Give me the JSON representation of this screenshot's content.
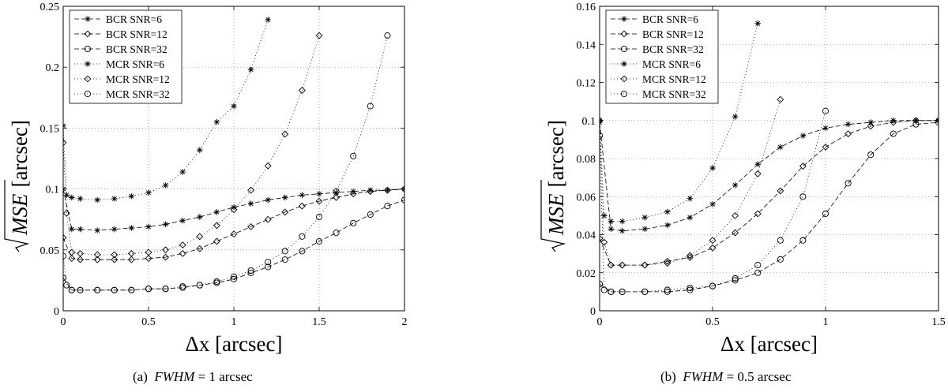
{
  "chart_data": [
    {
      "type": "line",
      "panel_label": "(a)",
      "caption_var": "FWHM",
      "caption_rest": " = 1 arcsec",
      "xlabel": "Δx [arcsec]",
      "ylabel": "√MSE [arcsec]",
      "ylabel_root": "MSE",
      "ylabel_unit": "[arcsec]",
      "xlim": [
        0,
        2
      ],
      "ylim": [
        0,
        0.25
      ],
      "xticks": [
        0,
        0.5,
        1,
        1.5,
        2
      ],
      "xtick_labels": [
        "0",
        "0.5",
        "1",
        "1.5",
        "2"
      ],
      "yticks": [
        0,
        0.05,
        0.1,
        0.15,
        0.2,
        0.25
      ],
      "ytick_labels": [
        "0",
        "0.05",
        "0.1",
        "0.15",
        "0.2",
        "0.25"
      ],
      "grid": true,
      "legend_position": "top-left",
      "series": [
        {
          "name": "BCR SNR=6",
          "marker": "star",
          "linestyle": "dash",
          "x": [
            0,
            0.05,
            0.1,
            0.2,
            0.3,
            0.4,
            0.5,
            0.6,
            0.7,
            0.8,
            0.9,
            1.0,
            1.1,
            1.2,
            1.3,
            1.4,
            1.5,
            1.6,
            1.7,
            1.8,
            1.9,
            2.0
          ],
          "y": [
            0.1,
            0.067,
            0.067,
            0.066,
            0.067,
            0.068,
            0.069,
            0.071,
            0.074,
            0.077,
            0.081,
            0.085,
            0.088,
            0.091,
            0.093,
            0.095,
            0.096,
            0.097,
            0.098,
            0.099,
            0.099,
            0.1
          ]
        },
        {
          "name": "BCR SNR=12",
          "marker": "diamond",
          "linestyle": "dash",
          "x": [
            0,
            0.05,
            0.1,
            0.2,
            0.3,
            0.4,
            0.5,
            0.6,
            0.7,
            0.8,
            0.9,
            1.0,
            1.1,
            1.2,
            1.3,
            1.4,
            1.5,
            1.6,
            1.7,
            1.8,
            1.9,
            2.0
          ],
          "y": [
            0.06,
            0.043,
            0.042,
            0.042,
            0.042,
            0.042,
            0.043,
            0.044,
            0.047,
            0.051,
            0.057,
            0.063,
            0.069,
            0.075,
            0.081,
            0.086,
            0.09,
            0.093,
            0.096,
            0.098,
            0.099,
            0.1
          ]
        },
        {
          "name": "BCR SNR=32",
          "marker": "circle",
          "linestyle": "dash",
          "x": [
            0,
            0.05,
            0.1,
            0.2,
            0.3,
            0.4,
            0.5,
            0.6,
            0.7,
            0.8,
            0.9,
            1.0,
            1.1,
            1.2,
            1.3,
            1.4,
            1.5,
            1.6,
            1.7,
            1.8,
            1.9,
            2.0
          ],
          "y": [
            0.027,
            0.017,
            0.017,
            0.017,
            0.017,
            0.017,
            0.018,
            0.018,
            0.019,
            0.021,
            0.023,
            0.026,
            0.031,
            0.036,
            0.042,
            0.049,
            0.057,
            0.064,
            0.072,
            0.079,
            0.086,
            0.091
          ]
        },
        {
          "name": "MCR SNR=6",
          "marker": "star",
          "linestyle": "dot",
          "x": [
            0,
            0.02,
            0.05,
            0.1,
            0.2,
            0.3,
            0.4,
            0.5,
            0.6,
            0.7,
            0.8,
            0.9,
            1.0,
            1.1,
            1.2
          ],
          "y": [
            0.152,
            0.095,
            0.093,
            0.092,
            0.091,
            0.092,
            0.094,
            0.097,
            0.103,
            0.114,
            0.132,
            0.155,
            0.168,
            0.198,
            0.239
          ]
        },
        {
          "name": "MCR SNR=12",
          "marker": "diamond",
          "linestyle": "dot",
          "x": [
            0,
            0.02,
            0.05,
            0.1,
            0.2,
            0.3,
            0.4,
            0.5,
            0.6,
            0.7,
            0.8,
            0.9,
            1.0,
            1.1,
            1.2,
            1.3,
            1.4,
            1.5
          ],
          "y": [
            0.138,
            0.08,
            0.048,
            0.047,
            0.046,
            0.046,
            0.047,
            0.048,
            0.05,
            0.054,
            0.061,
            0.07,
            0.083,
            0.099,
            0.119,
            0.145,
            0.181,
            0.226
          ]
        },
        {
          "name": "MCR SNR=32",
          "marker": "circle",
          "linestyle": "dot",
          "x": [
            0,
            0.02,
            0.05,
            0.1,
            0.2,
            0.3,
            0.4,
            0.5,
            0.6,
            0.7,
            0.8,
            0.9,
            1.0,
            1.1,
            1.2,
            1.3,
            1.4,
            1.5,
            1.6,
            1.7,
            1.8,
            1.9
          ],
          "y": [
            0.045,
            0.021,
            0.017,
            0.017,
            0.017,
            0.017,
            0.017,
            0.018,
            0.018,
            0.02,
            0.021,
            0.024,
            0.028,
            0.033,
            0.04,
            0.049,
            0.061,
            0.077,
            0.098,
            0.127,
            0.168,
            0.226
          ]
        }
      ]
    },
    {
      "type": "line",
      "panel_label": "(b)",
      "caption_var": "FWHM",
      "caption_rest": " = 0.5 arcsec",
      "xlabel": "Δx [arcsec]",
      "ylabel": "√MSE [arcsec]",
      "ylabel_root": "MSE",
      "ylabel_unit": "[arcsec]",
      "xlim": [
        0,
        1.5
      ],
      "ylim": [
        0,
        0.16
      ],
      "xticks": [
        0,
        0.5,
        1,
        1.5
      ],
      "xtick_labels": [
        "0",
        "0.5",
        "1",
        "1.5"
      ],
      "yticks": [
        0,
        0.02,
        0.04,
        0.06,
        0.08,
        0.1,
        0.12,
        0.14,
        0.16
      ],
      "ytick_labels": [
        "0",
        "0.02",
        "0.04",
        "0.06",
        "0.08",
        "0.1",
        "0.12",
        "0.14",
        "0.16"
      ],
      "grid": true,
      "legend_position": "top-left",
      "series": [
        {
          "name": "BCR SNR=6",
          "marker": "star",
          "linestyle": "dash",
          "x": [
            0,
            0.05,
            0.1,
            0.2,
            0.3,
            0.4,
            0.5,
            0.6,
            0.7,
            0.8,
            0.9,
            1.0,
            1.1,
            1.2,
            1.3,
            1.4,
            1.5
          ],
          "y": [
            0.099,
            0.043,
            0.042,
            0.043,
            0.045,
            0.049,
            0.056,
            0.066,
            0.077,
            0.086,
            0.092,
            0.096,
            0.098,
            0.099,
            0.1,
            0.1,
            0.1
          ]
        },
        {
          "name": "BCR SNR=12",
          "marker": "diamond",
          "linestyle": "dash",
          "x": [
            0,
            0.05,
            0.1,
            0.2,
            0.3,
            0.4,
            0.5,
            0.6,
            0.7,
            0.8,
            0.9,
            1.0,
            1.1,
            1.2,
            1.3,
            1.4,
            1.5
          ],
          "y": [
            0.038,
            0.024,
            0.024,
            0.024,
            0.026,
            0.028,
            0.033,
            0.041,
            0.051,
            0.063,
            0.076,
            0.086,
            0.093,
            0.097,
            0.099,
            0.1,
            0.1
          ]
        },
        {
          "name": "BCR SNR=32",
          "marker": "circle",
          "linestyle": "dash",
          "x": [
            0,
            0.05,
            0.1,
            0.2,
            0.3,
            0.4,
            0.5,
            0.6,
            0.7,
            0.8,
            0.9,
            1.0,
            1.1,
            1.2,
            1.3,
            1.4,
            1.5
          ],
          "y": [
            0.014,
            0.01,
            0.01,
            0.01,
            0.01,
            0.011,
            0.013,
            0.016,
            0.02,
            0.027,
            0.037,
            0.051,
            0.067,
            0.082,
            0.093,
            0.098,
            0.099
          ]
        },
        {
          "name": "MCR SNR=6",
          "marker": "star",
          "linestyle": "dot",
          "x": [
            0,
            0.02,
            0.05,
            0.1,
            0.2,
            0.3,
            0.4,
            0.5,
            0.6,
            0.7
          ],
          "y": [
            0.1,
            0.05,
            0.047,
            0.047,
            0.049,
            0.052,
            0.059,
            0.075,
            0.102,
            0.151
          ]
        },
        {
          "name": "MCR SNR=12",
          "marker": "diamond",
          "linestyle": "dot",
          "x": [
            0,
            0.02,
            0.05,
            0.1,
            0.2,
            0.3,
            0.4,
            0.5,
            0.6,
            0.7,
            0.8
          ],
          "y": [
            0.1,
            0.036,
            0.024,
            0.024,
            0.024,
            0.025,
            0.029,
            0.037,
            0.05,
            0.072,
            0.111
          ]
        },
        {
          "name": "MCR SNR=32",
          "marker": "circle",
          "linestyle": "dot",
          "x": [
            0,
            0.02,
            0.05,
            0.1,
            0.2,
            0.3,
            0.4,
            0.5,
            0.6,
            0.7,
            0.8,
            0.9,
            1.0
          ],
          "y": [
            0.092,
            0.011,
            0.01,
            0.01,
            0.01,
            0.011,
            0.012,
            0.013,
            0.017,
            0.024,
            0.037,
            0.06,
            0.105
          ]
        }
      ]
    }
  ]
}
